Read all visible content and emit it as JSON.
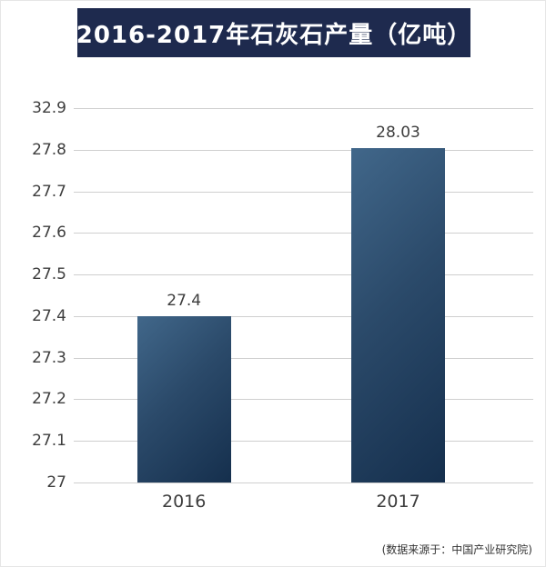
{
  "page": {
    "title": "2016-2017年石灰石产量（亿吨）",
    "source_note": "(数据来源于：中国产业研究院)"
  },
  "colors": {
    "banner_bg": "#1e2a4e",
    "banner_text": "#ffffff",
    "bar_light": "#41678a",
    "bar_mid": "#2b4a6a",
    "bar_dark": "#152f4d",
    "grid_color": "#cfcfcf",
    "axis_text": "#3d3d3d"
  },
  "chart_data": {
    "type": "bar",
    "title": "2016-2017年石灰石产量（亿吨）",
    "categories": [
      "2016",
      "2017"
    ],
    "values": [
      27.4,
      28.03
    ],
    "value_labels": [
      "27.4",
      "28.03"
    ],
    "y_ticks": [
      27,
      27.1,
      27.2,
      27.3,
      27.4,
      27.5,
      27.6,
      27.7,
      27.8,
      32.9
    ],
    "y_tick_labels": [
      "27",
      "27.1",
      "27.2",
      "27.3",
      "27.4",
      "27.5",
      "27.6",
      "27.7",
      "27.8",
      "32.9"
    ],
    "ylim": [
      27,
      32.9
    ],
    "xlabel": "",
    "ylabel": "",
    "grid": true,
    "legend": false,
    "source_note": "(数据来源于：中国产业研究院)"
  }
}
